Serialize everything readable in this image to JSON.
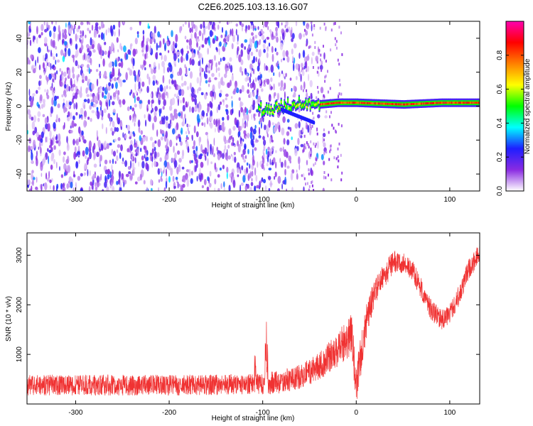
{
  "title": "C2E6.2025.103.13.16.G07",
  "chart_data": [
    {
      "type": "heatmap",
      "xlabel": "Height of straight line (km)",
      "ylabel": "Frequency (Hz)",
      "xlim": [
        -352,
        132
      ],
      "ylim": [
        -50,
        50
      ],
      "xticks": [
        -300,
        -200,
        -100,
        0,
        100
      ],
      "yticks": [
        -40,
        -20,
        0,
        20,
        40
      ],
      "colorbar": {
        "label": "Normalized spectral amplitude",
        "range": [
          0,
          1
        ],
        "ticks": [
          0.0,
          0.2,
          0.4,
          0.6,
          0.8
        ],
        "colors": [
          "#ffffff",
          "#8a2be2",
          "#1e1eff",
          "#00ffff",
          "#00ff00",
          "#ffff00",
          "#ff8000",
          "#ff0000",
          "#ff00b0"
        ]
      },
      "noise_region": {
        "x_range": [
          -352,
          -60
        ],
        "amplitude": 0.15
      },
      "signal_ridge": [
        {
          "x": -100,
          "y": -2
        },
        {
          "x": -80,
          "y": 0
        },
        {
          "x": -60,
          "y": 2
        },
        {
          "x": -40,
          "y": 1
        },
        {
          "x": -20,
          "y": 2
        },
        {
          "x": 0,
          "y": 2
        },
        {
          "x": 50,
          "y": 1
        },
        {
          "x": 90,
          "y": 2
        },
        {
          "x": 132,
          "y": 2
        }
      ],
      "ridge_amplitude": 0.9
    },
    {
      "type": "line",
      "xlabel": "Height of straight line (km)",
      "ylabel": "SNR (10 * v/v)",
      "xlim": [
        -352,
        132
      ],
      "ylim": [
        0,
        3450
      ],
      "xticks": [
        -300,
        -200,
        -100,
        0,
        100
      ],
      "yticks": [
        1000,
        2000,
        3000
      ],
      "color": "#f03232",
      "x": [
        -352,
        -300,
        -250,
        -200,
        -150,
        -100,
        -80,
        -60,
        -40,
        -20,
        -5,
        0,
        10,
        20,
        30,
        40,
        50,
        60,
        70,
        80,
        90,
        100,
        110,
        120,
        132
      ],
      "y": [
        380,
        380,
        380,
        380,
        390,
        400,
        450,
        550,
        750,
        1100,
        1400,
        300,
        1600,
        2300,
        2600,
        2850,
        2850,
        2700,
        2300,
        1900,
        1700,
        1800,
        2200,
        2700,
        3050
      ],
      "noise": [
        300,
        300,
        300,
        300,
        300,
        300,
        350,
        350,
        400,
        500,
        600,
        700,
        500,
        400,
        350,
        350,
        300,
        300,
        300,
        300,
        300,
        300,
        300,
        300,
        300
      ]
    }
  ]
}
